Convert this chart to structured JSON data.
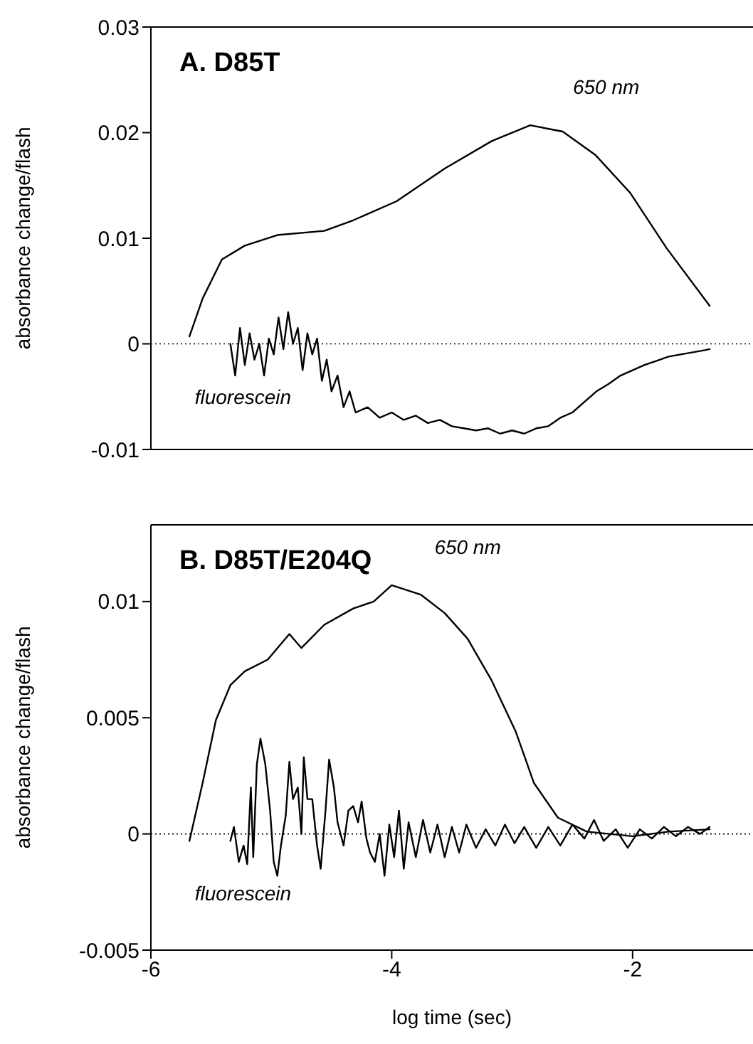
{
  "chart_data": [
    {
      "type": "line",
      "title": "A. D85T",
      "ylabel": "absorbance change/flash",
      "xlim": [
        -6,
        -1
      ],
      "xticks": [
        -6,
        -4,
        -2
      ],
      "ylim": [
        -0.01,
        0.03
      ],
      "yticks": [
        -0.01,
        0,
        0.01,
        0.02,
        0.03
      ],
      "tick_labels": "y",
      "marker": "none",
      "line_style": "solid",
      "ref_lines": [
        {
          "axis": "y",
          "value": 0,
          "line_style": "dotted",
          "color": "#000000"
        }
      ],
      "series": [
        {
          "name": "650 nm",
          "color": "#000000",
          "x": [
            -5.68,
            -5.57,
            -5.41,
            -5.22,
            -4.95,
            -4.56,
            -4.32,
            -3.96,
            -3.56,
            -3.17,
            -2.85,
            -2.58,
            -2.31,
            -2.02,
            -1.72,
            -1.36
          ],
          "values": [
            0.0007,
            0.0043,
            0.008,
            0.0093,
            0.0103,
            0.0107,
            0.0117,
            0.0135,
            0.0166,
            0.0192,
            0.0207,
            0.0201,
            0.0179,
            0.0143,
            0.0091,
            0.0036
          ]
        },
        {
          "name": "fluorescein",
          "color": "#000000",
          "x": [
            -5.34,
            -5.3,
            -5.26,
            -5.22,
            -5.18,
            -5.14,
            -5.1,
            -5.06,
            -5.02,
            -4.98,
            -4.94,
            -4.9,
            -4.86,
            -4.82,
            -4.78,
            -4.74,
            -4.7,
            -4.66,
            -4.62,
            -4.58,
            -4.54,
            -4.5,
            -4.45,
            -4.4,
            -4.35,
            -4.3,
            -4.2,
            -4.1,
            -4.0,
            -3.9,
            -3.8,
            -3.7,
            -3.6,
            -3.5,
            -3.4,
            -3.3,
            -3.2,
            -3.1,
            -3.0,
            -2.9,
            -2.8,
            -2.7,
            -2.6,
            -2.5,
            -2.4,
            -2.3,
            -2.2,
            -2.1,
            -2.0,
            -1.9,
            -1.8,
            -1.7,
            -1.6,
            -1.5,
            -1.4,
            -1.36
          ],
          "values": [
            0.0,
            -0.003,
            0.0015,
            -0.002,
            0.001,
            -0.0015,
            0.0,
            -0.003,
            0.0005,
            -0.001,
            0.0025,
            -0.0005,
            0.003,
            0.0,
            0.0015,
            -0.0025,
            0.001,
            -0.001,
            0.0005,
            -0.0035,
            -0.0015,
            -0.0045,
            -0.003,
            -0.006,
            -0.0045,
            -0.0065,
            -0.006,
            -0.007,
            -0.0065,
            -0.0072,
            -0.0068,
            -0.0075,
            -0.0072,
            -0.0078,
            -0.008,
            -0.0082,
            -0.008,
            -0.0085,
            -0.0082,
            -0.0085,
            -0.008,
            -0.0078,
            -0.007,
            -0.0065,
            -0.0055,
            -0.0045,
            -0.0038,
            -0.003,
            -0.0025,
            -0.002,
            -0.0016,
            -0.0012,
            -0.001,
            -0.0008,
            -0.0006,
            -0.0005
          ]
        }
      ]
    },
    {
      "type": "line",
      "title": "B. D85T/E204Q",
      "xlabel": "log time (sec)",
      "ylabel": "absorbance change/flash",
      "xlim": [
        -6,
        -1
      ],
      "xticks": [
        -6,
        -4,
        -2
      ],
      "ylim": [
        -0.005,
        0.0133
      ],
      "yticks": [
        -0.005,
        0,
        0.005,
        0.01
      ],
      "marker": "none",
      "line_style": "solid",
      "ref_lines": [
        {
          "axis": "y",
          "value": 0,
          "line_style": "dotted",
          "color": "#000000"
        }
      ],
      "series": [
        {
          "name": "650 nm",
          "color": "#000000",
          "x": [
            -5.68,
            -5.57,
            -5.46,
            -5.34,
            -5.22,
            -5.03,
            -4.85,
            -4.75,
            -4.56,
            -4.32,
            -4.15,
            -4.0,
            -3.76,
            -3.56,
            -3.37,
            -3.17,
            -2.97,
            -2.82,
            -2.62,
            -2.38,
            -2.0,
            -1.7,
            -1.36
          ],
          "values": [
            -0.0003,
            0.0022,
            0.0049,
            0.0064,
            0.007,
            0.0075,
            0.0086,
            0.008,
            0.009,
            0.0097,
            0.01,
            0.0107,
            0.0103,
            0.0095,
            0.0084,
            0.0066,
            0.0044,
            0.0022,
            0.0007,
            0.0001,
            -0.0001,
            0.0001,
            0.0002
          ]
        },
        {
          "name": "fluorescein",
          "color": "#000000",
          "x": [
            -5.34,
            -5.31,
            -5.27,
            -5.23,
            -5.2,
            -5.17,
            -5.15,
            -5.12,
            -5.09,
            -5.05,
            -5.01,
            -4.98,
            -4.95,
            -4.92,
            -4.88,
            -4.85,
            -4.82,
            -4.78,
            -4.75,
            -4.73,
            -4.7,
            -4.66,
            -4.62,
            -4.59,
            -4.55,
            -4.52,
            -4.48,
            -4.45,
            -4.4,
            -4.36,
            -4.32,
            -4.28,
            -4.25,
            -4.21,
            -4.18,
            -4.14,
            -4.1,
            -4.06,
            -4.02,
            -3.98,
            -3.94,
            -3.9,
            -3.86,
            -3.8,
            -3.74,
            -3.68,
            -3.62,
            -3.56,
            -3.5,
            -3.44,
            -3.38,
            -3.3,
            -3.22,
            -3.14,
            -3.06,
            -2.98,
            -2.9,
            -2.8,
            -2.7,
            -2.6,
            -2.5,
            -2.4,
            -2.32,
            -2.24,
            -2.14,
            -2.04,
            -1.94,
            -1.84,
            -1.74,
            -1.64,
            -1.54,
            -1.44,
            -1.36
          ],
          "values": [
            -0.0003,
            0.0003,
            -0.0012,
            -0.0005,
            -0.0013,
            0.002,
            -0.001,
            0.003,
            0.0041,
            0.003,
            0.001,
            -0.0012,
            -0.0018,
            -0.0005,
            0.0008,
            0.0031,
            0.0015,
            0.002,
            0.0,
            0.0033,
            0.0015,
            0.0015,
            -0.0005,
            -0.0015,
            0.001,
            0.0032,
            0.002,
            0.0005,
            -0.0005,
            0.001,
            0.0012,
            0.0005,
            0.0014,
            -0.0002,
            -0.0008,
            -0.0012,
            0.0,
            -0.0018,
            0.0004,
            -0.001,
            0.001,
            -0.0015,
            0.0005,
            -0.001,
            0.0006,
            -0.0008,
            0.0004,
            -0.001,
            0.0003,
            -0.0008,
            0.0004,
            -0.0006,
            0.0002,
            -0.0005,
            0.0004,
            -0.0004,
            0.0003,
            -0.0006,
            0.0003,
            -0.0005,
            0.0004,
            -0.0002,
            0.0006,
            -0.0003,
            0.0002,
            -0.0006,
            0.0002,
            -0.0002,
            0.0003,
            -0.0001,
            0.0003,
            0.0,
            0.0003
          ]
        }
      ]
    }
  ]
}
